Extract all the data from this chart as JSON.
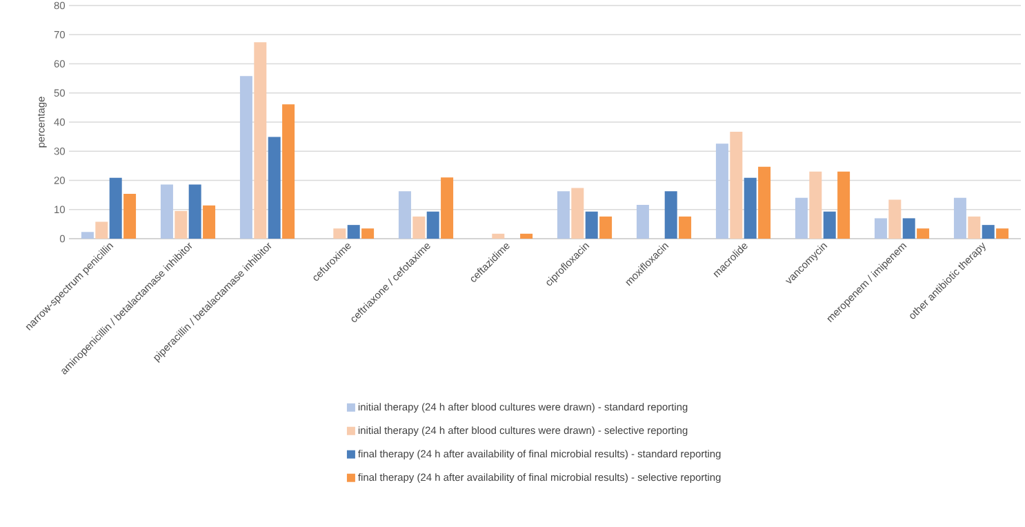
{
  "chart_data": {
    "type": "bar",
    "ylabel": "percentage",
    "categories": [
      "narrow-spectrum penicillin",
      "aminopenicillin / betalactamase inhibitor",
      "piperacillin / betalactamase inhibitor",
      "cefuroxime",
      "ceftriaxone / cefotaxime",
      "ceftazidime",
      "ciprofloxacin",
      "moxifloxacin",
      "macrolide",
      "vancomycin",
      "meropenem / imipenem",
      "other antibiotic therapy"
    ],
    "series": [
      {
        "name": "initial therapy (24 h  after blood cultures were drawn) - standard reporting",
        "color": "#b4c7e7",
        "values": [
          2.3,
          18.6,
          55.8,
          0,
          16.3,
          0,
          16.3,
          11.6,
          32.6,
          14.0,
          7.0,
          14.0
        ]
      },
      {
        "name": "initial therapy  (24 h  after blood cultures were drawn) - selective reporting",
        "color": "#f8cbad",
        "values": [
          5.8,
          9.5,
          67.4,
          3.5,
          7.6,
          1.7,
          17.4,
          0,
          36.7,
          23.0,
          13.4,
          7.6
        ]
      },
      {
        "name": "final therapy (24 h after availability of final microbial results) - standard reporting",
        "color": "#4a7ebb",
        "values": [
          20.9,
          18.6,
          34.9,
          4.7,
          9.3,
          0,
          9.3,
          16.3,
          20.9,
          9.3,
          7.0,
          4.7
        ]
      },
      {
        "name": "final therapy (24 h after availability of final microbial results) - selective reporting",
        "color": "#f79646",
        "values": [
          15.4,
          11.4,
          46.1,
          3.5,
          21.0,
          1.7,
          7.6,
          7.6,
          24.7,
          23.0,
          3.5,
          3.5
        ]
      }
    ],
    "ylim": [
      0,
      80
    ],
    "yticks": [
      0,
      10,
      20,
      30,
      40,
      50,
      60,
      70,
      80
    ],
    "grid": "y",
    "legend": "bottom"
  }
}
